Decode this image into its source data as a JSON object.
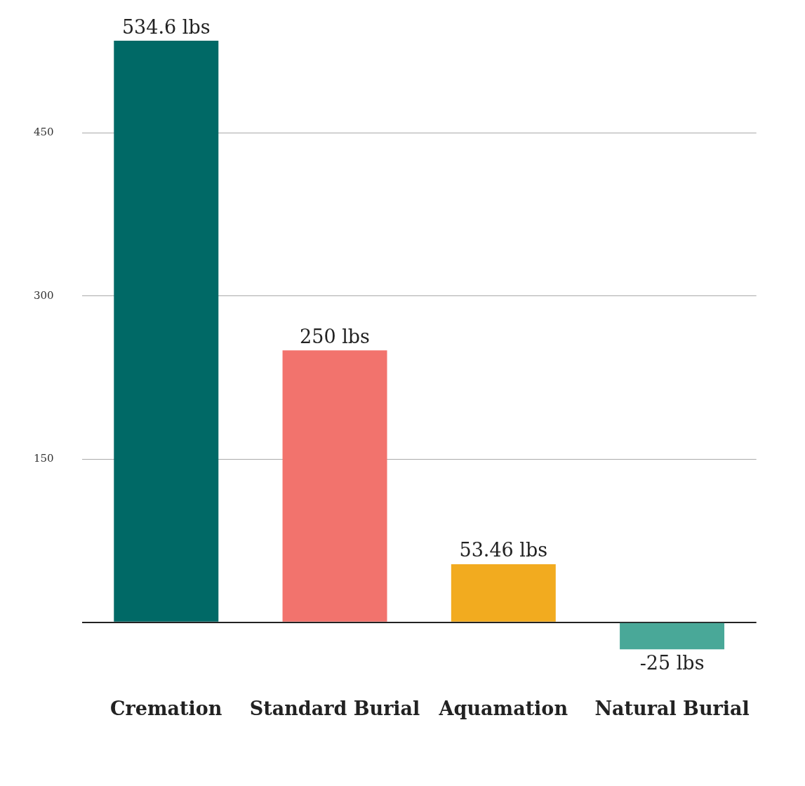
{
  "chart_data": {
    "type": "bar",
    "categories": [
      "Cremation",
      "Standard Burial",
      "Aquamation",
      "Natural Burial"
    ],
    "values": [
      534.6,
      250,
      53.46,
      -25
    ],
    "colors": [
      "#006966",
      "#f2736d",
      "#f2ab1f",
      "#49a898"
    ],
    "value_labels": [
      "534.6 lbs",
      "250 lbs",
      "53.46 lbs",
      "-25 lbs"
    ],
    "ylim": [
      -25,
      534.6
    ],
    "yticks": [
      {
        "value": 0,
        "label": null
      },
      150,
      300,
      450
    ],
    "grid": "y",
    "legend": false
  }
}
